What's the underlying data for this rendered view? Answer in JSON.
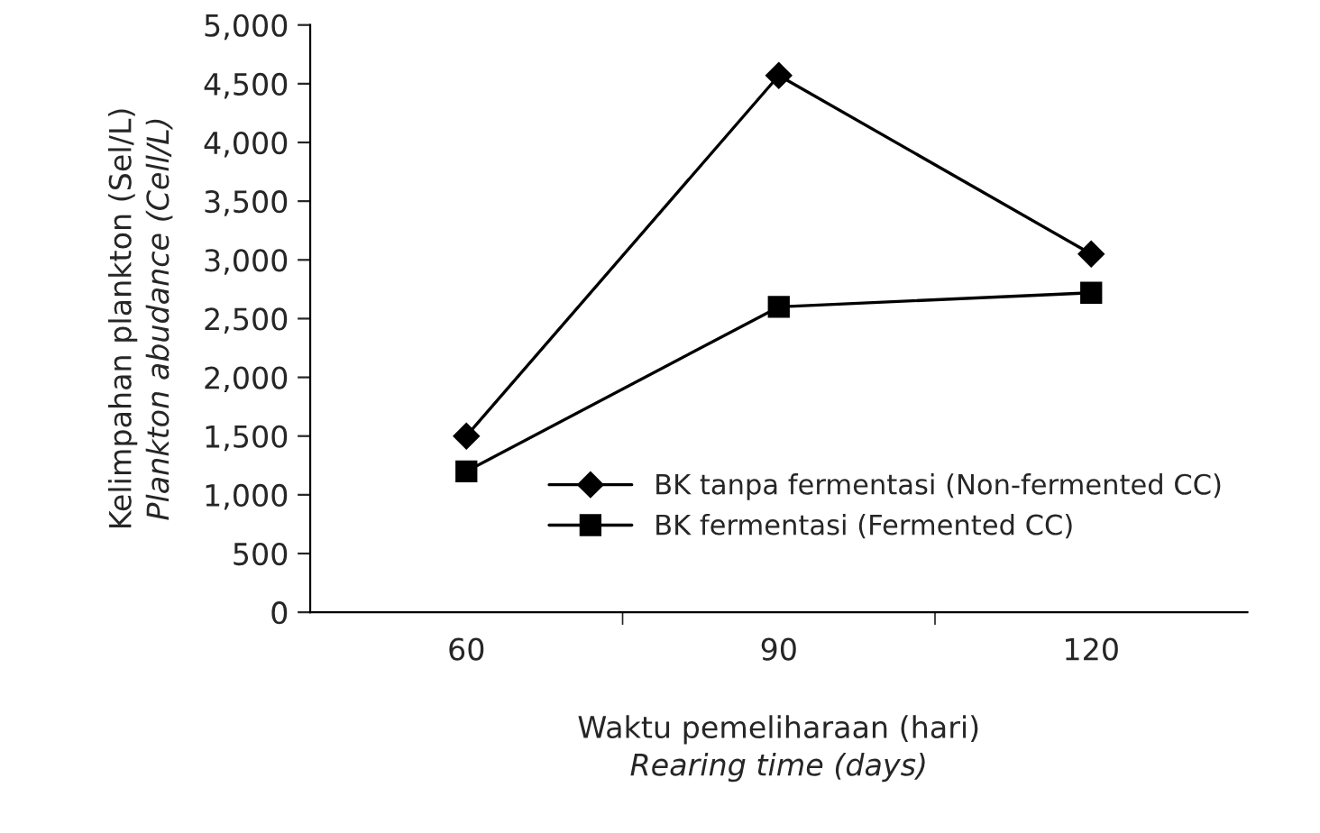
{
  "chart_data": {
    "type": "line",
    "xlabel": "Waktu pemeliharaan (hari)\nRearing time (days)",
    "ylabel": "Kelimpahan plankton (Sel/L)\nPlankton abudance (Cell/L)",
    "categories": [
      "60",
      "90",
      "120"
    ],
    "series": [
      {
        "name": "BK tanpa fermentasi (Non-fermented CC)",
        "color": "#000000",
        "marker": "diamond",
        "values": [
          1500,
          4570,
          3050
        ]
      },
      {
        "name": "BK fermentasi (Fermented CC)",
        "color": "#000000",
        "marker": "square",
        "values": [
          1200,
          2600,
          2720
        ]
      }
    ],
    "ylim": [
      0,
      5000
    ],
    "yticks": [
      {
        "value": 0,
        "label": "0"
      },
      {
        "value": 500,
        "label": "500"
      },
      {
        "value": 1000,
        "label": "1,000"
      },
      {
        "value": 1500,
        "label": "1,500"
      },
      {
        "value": 2000,
        "label": "2,000"
      },
      {
        "value": 2500,
        "label": "2,500"
      },
      {
        "value": 3000,
        "label": "3,000"
      },
      {
        "value": 3500,
        "label": "3,500"
      },
      {
        "value": 4000,
        "label": "4,000"
      },
      {
        "value": 4500,
        "label": "4,500"
      },
      {
        "value": 5000,
        "label": "5,000"
      }
    ],
    "grid": false,
    "legend": "bottom right",
    "line_style": "solid"
  }
}
